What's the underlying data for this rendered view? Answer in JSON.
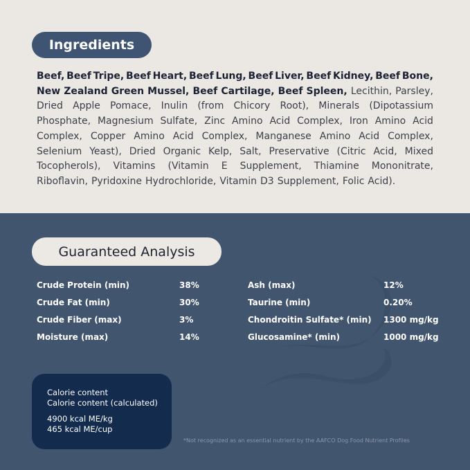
{
  "ingredients": {
    "title": "Ingredients",
    "lines": [
      [
        {
          "t": "Beef, Beef Tripe, Beef Heart, Beef Lung, Beef Liver, Beef Kidney, Beef Bone,",
          "b": true
        }
      ],
      [
        {
          "t": "New Zealand Green Mussel, Beef Cartilage, Beef Spleen,",
          "b": true
        },
        {
          "t": "Lecithin, Parsley,",
          "b": false
        }
      ],
      [
        {
          "t": "Dried Apple Pomace, Inulin (from Chicory Root), Minerals (Dipotassium",
          "b": false
        }
      ],
      [
        {
          "t": "Phosphate, Magnesium Sulfate, Zinc Amino Acid Complex, Iron Amino Acid",
          "b": false
        }
      ],
      [
        {
          "t": "Complex, Copper Amino Acid Complex, Manganese Amino Acid Complex,",
          "b": false
        }
      ],
      [
        {
          "t": "Selenium Yeast), Dried Organic Kelp, Salt, Preservative (Citric Acid, Mixed",
          "b": false
        }
      ],
      [
        {
          "t": "Tocopherols), Vitamins (Vitamin E Supplement, Thiamine Mononitrate,",
          "b": false
        }
      ],
      [
        {
          "t": "Riboflavin, Pyridoxine Hydrochloride, Vitamin D3 Supplement, Folic Acid).",
          "b": false
        }
      ]
    ]
  },
  "analysis": {
    "title": "Guaranteed Analysis",
    "rows": [
      {
        "label": "Crude Protein (min)",
        "value": "38%",
        "label2": "Ash (max)",
        "value2": "12%"
      },
      {
        "label": "Crude Fat (min)",
        "value": "30%",
        "label2": "Taurine (min)",
        "value2": "0.20%"
      },
      {
        "label": "Crude Fiber (max)",
        "value": "3%",
        "label2": "Chondroitin Sulfate* (min)",
        "value2": "1300 mg/kg"
      },
      {
        "label": "Moisture (max)",
        "value": "14%",
        "label2": "Glucosamine* (min)",
        "value2": "1000 mg/kg"
      }
    ]
  },
  "calorie": {
    "line1": "Calorie content",
    "line2": "Calorie content (calculated)",
    "line3": "4900 kcal ME/kg",
    "line4": "465 kcal ME/cup"
  },
  "footnote": "*Not recognized as an essential nutrient by the AAFCO Dog Food Nutrient Profiles",
  "colors": {
    "top_bg": "#ebe8e4",
    "bottom_bg": "#42556f",
    "pill_dark": "#3e5472",
    "calorie_box": "#132b4c"
  }
}
